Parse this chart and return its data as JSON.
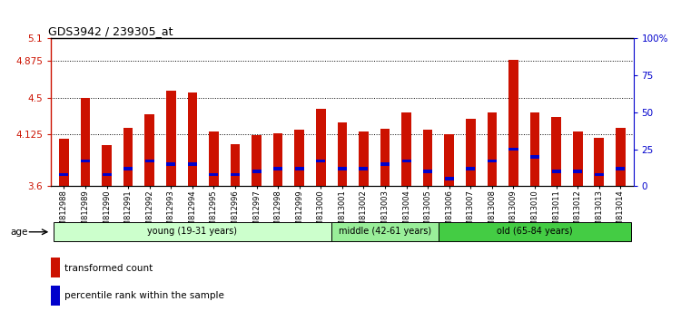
{
  "title": "GDS3942 / 239305_at",
  "samples": [
    "GSM812988",
    "GSM812989",
    "GSM812990",
    "GSM812991",
    "GSM812992",
    "GSM812993",
    "GSM812994",
    "GSM812995",
    "GSM812996",
    "GSM812997",
    "GSM812998",
    "GSM812999",
    "GSM813000",
    "GSM813001",
    "GSM813002",
    "GSM813003",
    "GSM813004",
    "GSM813005",
    "GSM813006",
    "GSM813007",
    "GSM813008",
    "GSM813009",
    "GSM813010",
    "GSM813011",
    "GSM813012",
    "GSM813013",
    "GSM813014"
  ],
  "transformed_count": [
    4.08,
    4.5,
    4.02,
    4.19,
    4.33,
    4.57,
    4.55,
    4.16,
    4.03,
    4.12,
    4.14,
    4.17,
    4.39,
    4.25,
    4.16,
    4.18,
    4.35,
    4.17,
    4.13,
    4.28,
    4.35,
    4.88,
    4.35,
    4.3,
    4.16,
    4.09,
    4.19
  ],
  "percentile_rank": [
    8,
    17,
    8,
    12,
    17,
    15,
    15,
    8,
    8,
    10,
    12,
    12,
    17,
    12,
    12,
    15,
    17,
    10,
    5,
    12,
    17,
    25,
    20,
    10,
    10,
    8,
    12
  ],
  "groups": [
    {
      "label": "young (19-31 years)",
      "start": 0,
      "end": 13,
      "color": "#ccffcc"
    },
    {
      "label": "middle (42-61 years)",
      "start": 13,
      "end": 18,
      "color": "#99ee99"
    },
    {
      "label": "old (65-84 years)",
      "start": 18,
      "end": 27,
      "color": "#44cc44"
    }
  ],
  "ylim_left": [
    3.6,
    5.1
  ],
  "ylim_right": [
    0,
    100
  ],
  "yticks_left": [
    3.6,
    4.125,
    4.5,
    4.875,
    5.1
  ],
  "yticks_right": [
    0,
    25,
    50,
    75,
    100
  ],
  "ytick_labels_left": [
    "3.6",
    "4.125",
    "4.5",
    "4.875",
    "5.1"
  ],
  "ytick_labels_right": [
    "0",
    "25",
    "50",
    "75",
    "100%"
  ],
  "grid_lines": [
    4.125,
    4.5,
    4.875
  ],
  "bar_color": "#cc1100",
  "percentile_color": "#0000cc",
  "background_color": "#ffffff"
}
